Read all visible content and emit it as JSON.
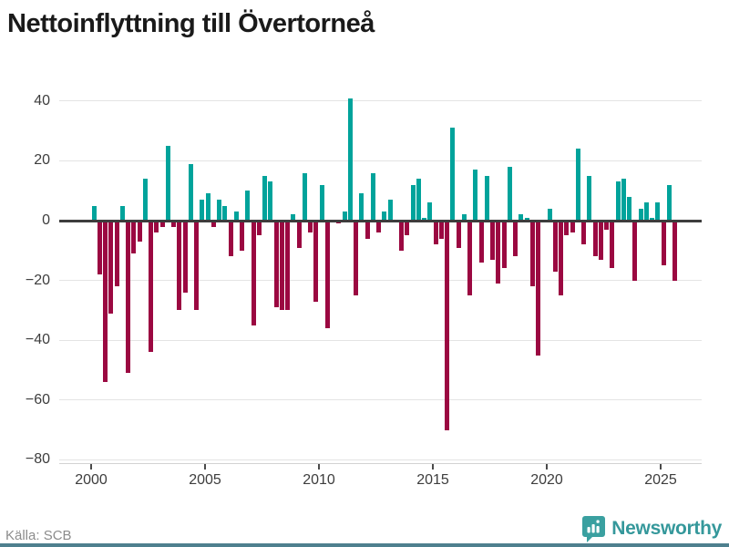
{
  "title": "Nettoinflyttning till Övertorneå",
  "source": "Källa: SCB",
  "brand": {
    "name": "Newsworthy",
    "icon": "bar-chart-pin-icon"
  },
  "colors": {
    "positive": "#00a39b",
    "negative": "#9b0841",
    "grid": "#e4e4e4",
    "zero_line": "#3d3d3d",
    "axis_text": "#3d3d3d",
    "title_text": "#1a1a1a",
    "source_text": "#8c8c8c",
    "brand_teal": "#35989b",
    "footer_strip": "#4e808e"
  },
  "chart_data": {
    "type": "bar",
    "title": "Nettoinflyttning till Övertorneå",
    "frequency": "quarterly",
    "x_start": {
      "year": 2000,
      "quarter": 1
    },
    "values": [
      5,
      -18,
      -54,
      -31,
      -22,
      5,
      -51,
      -11,
      -7,
      14,
      -44,
      -4,
      -2,
      25,
      -2,
      -30,
      -24,
      19,
      -30,
      7,
      9,
      -2,
      7,
      5,
      -12,
      3,
      -10,
      10,
      -35,
      -5,
      15,
      13,
      -29,
      -30,
      -30,
      2,
      -9,
      16,
      -4,
      -27,
      12,
      -36,
      0,
      -1,
      3,
      41,
      -25,
      9,
      -6,
      16,
      -4,
      3,
      7,
      0,
      -10,
      -5,
      12,
      14,
      1,
      6,
      -8,
      -6,
      -70,
      31,
      -9,
      2,
      -25,
      17,
      -14,
      15,
      -13,
      -21,
      -16,
      18,
      -12,
      2,
      1,
      -22,
      -45,
      0,
      4,
      -17,
      -25,
      -5,
      -4,
      24,
      -8,
      15,
      -12,
      -13,
      -3,
      -16,
      13,
      14,
      8,
      -20,
      4,
      6,
      1,
      6,
      -15,
      12,
      -20
    ],
    "x_tick_years": [
      2000,
      2005,
      2010,
      2015,
      2020,
      2025
    ],
    "y_ticks": [
      40,
      20,
      0,
      -20,
      -40,
      -60,
      -80
    ],
    "ylim": [
      -80,
      45
    ],
    "grid": true,
    "legend": false
  }
}
